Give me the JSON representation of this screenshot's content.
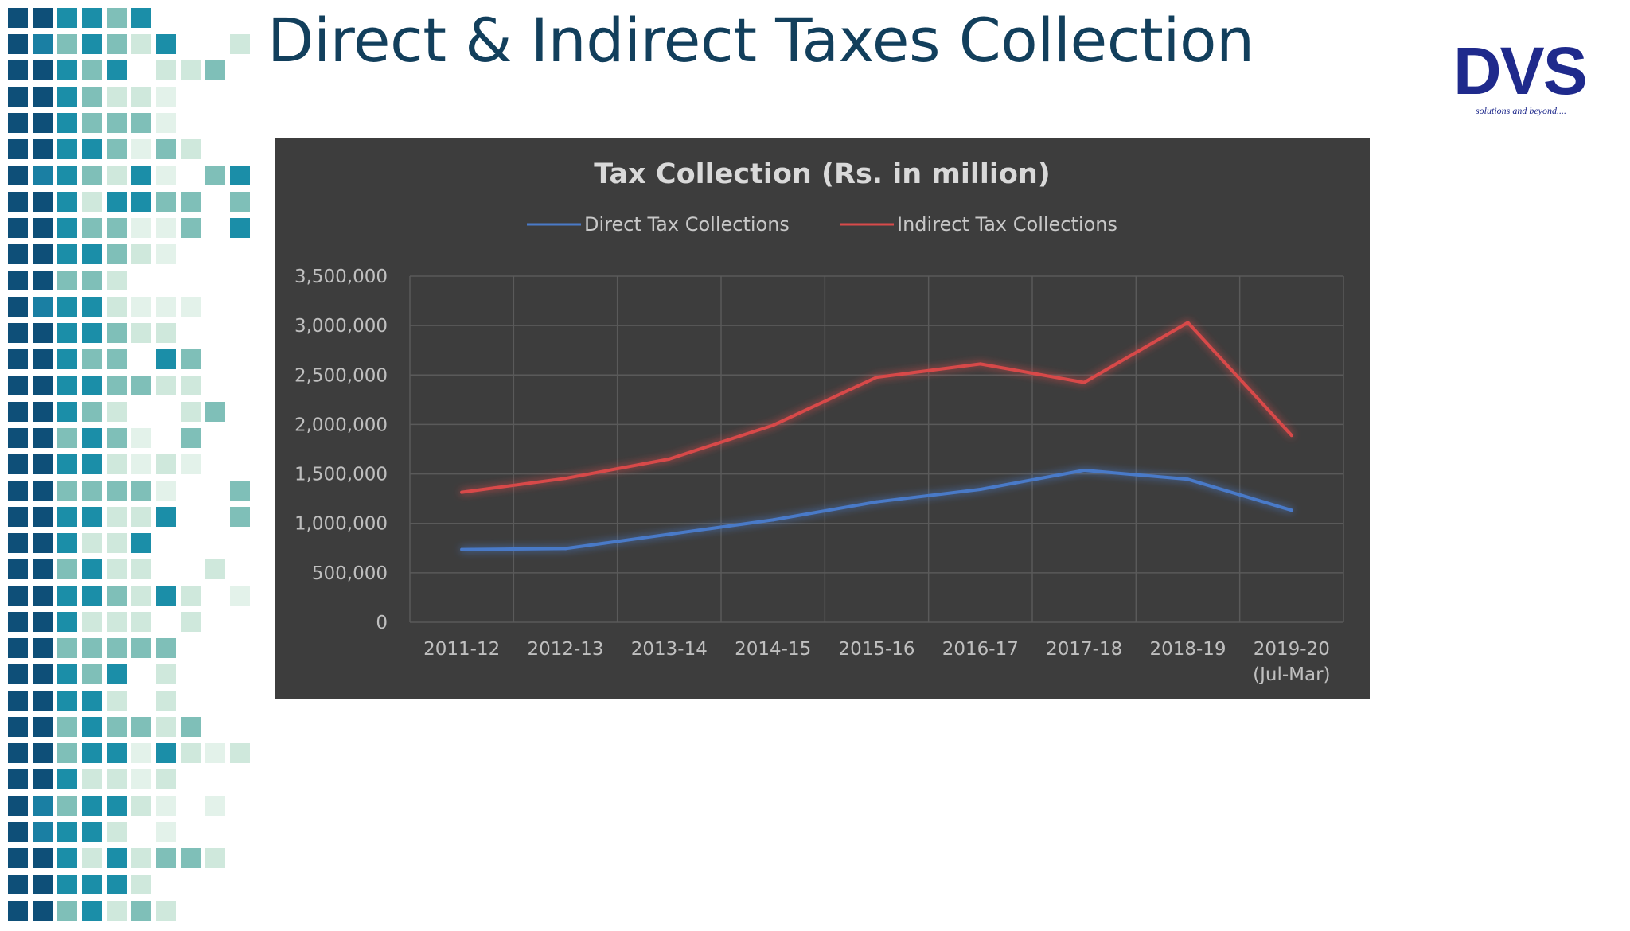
{
  "slide": {
    "title": "Direct & Indirect Taxes Collection",
    "logo": {
      "text": "DVS",
      "tagline": "solutions and beyond....",
      "color": "#1f2a8c"
    }
  },
  "colors": {
    "panel_background": "#3d3d3d",
    "gridline": "#5a5a5a",
    "direct_series": "#4a7ac8",
    "indirect_series": "#d84a4a",
    "title_text": "#123f5c"
  },
  "chart_data": {
    "type": "line",
    "title": "Tax Collection (Rs. in million)",
    "xlabel": "",
    "ylabel": "",
    "categories": [
      "2011-12",
      "2012-13",
      "2013-14",
      "2014-15",
      "2015-16",
      "2016-17",
      "2017-18",
      "2018-19",
      "2019-20 (Jul-Mar)"
    ],
    "series": [
      {
        "name": "Direct Tax Collections",
        "color": "#4a7ac8",
        "values": [
          735000,
          745000,
          890000,
          1035000,
          1217000,
          1344000,
          1537000,
          1446000,
          1132000
        ]
      },
      {
        "name": "Indirect Tax Collections",
        "color": "#d84a4a",
        "values": [
          1315000,
          1455000,
          1650000,
          1991000,
          2477000,
          2612000,
          2425000,
          3030000,
          1890000
        ]
      }
    ],
    "ylim": [
      0,
      3500000
    ],
    "yticks": [
      "0",
      "500,000",
      "1,000,000",
      "1,500,000",
      "2,000,000",
      "2,500,000",
      "3,000,000",
      "3,500,000"
    ],
    "grid": true,
    "legend_position": "top"
  }
}
